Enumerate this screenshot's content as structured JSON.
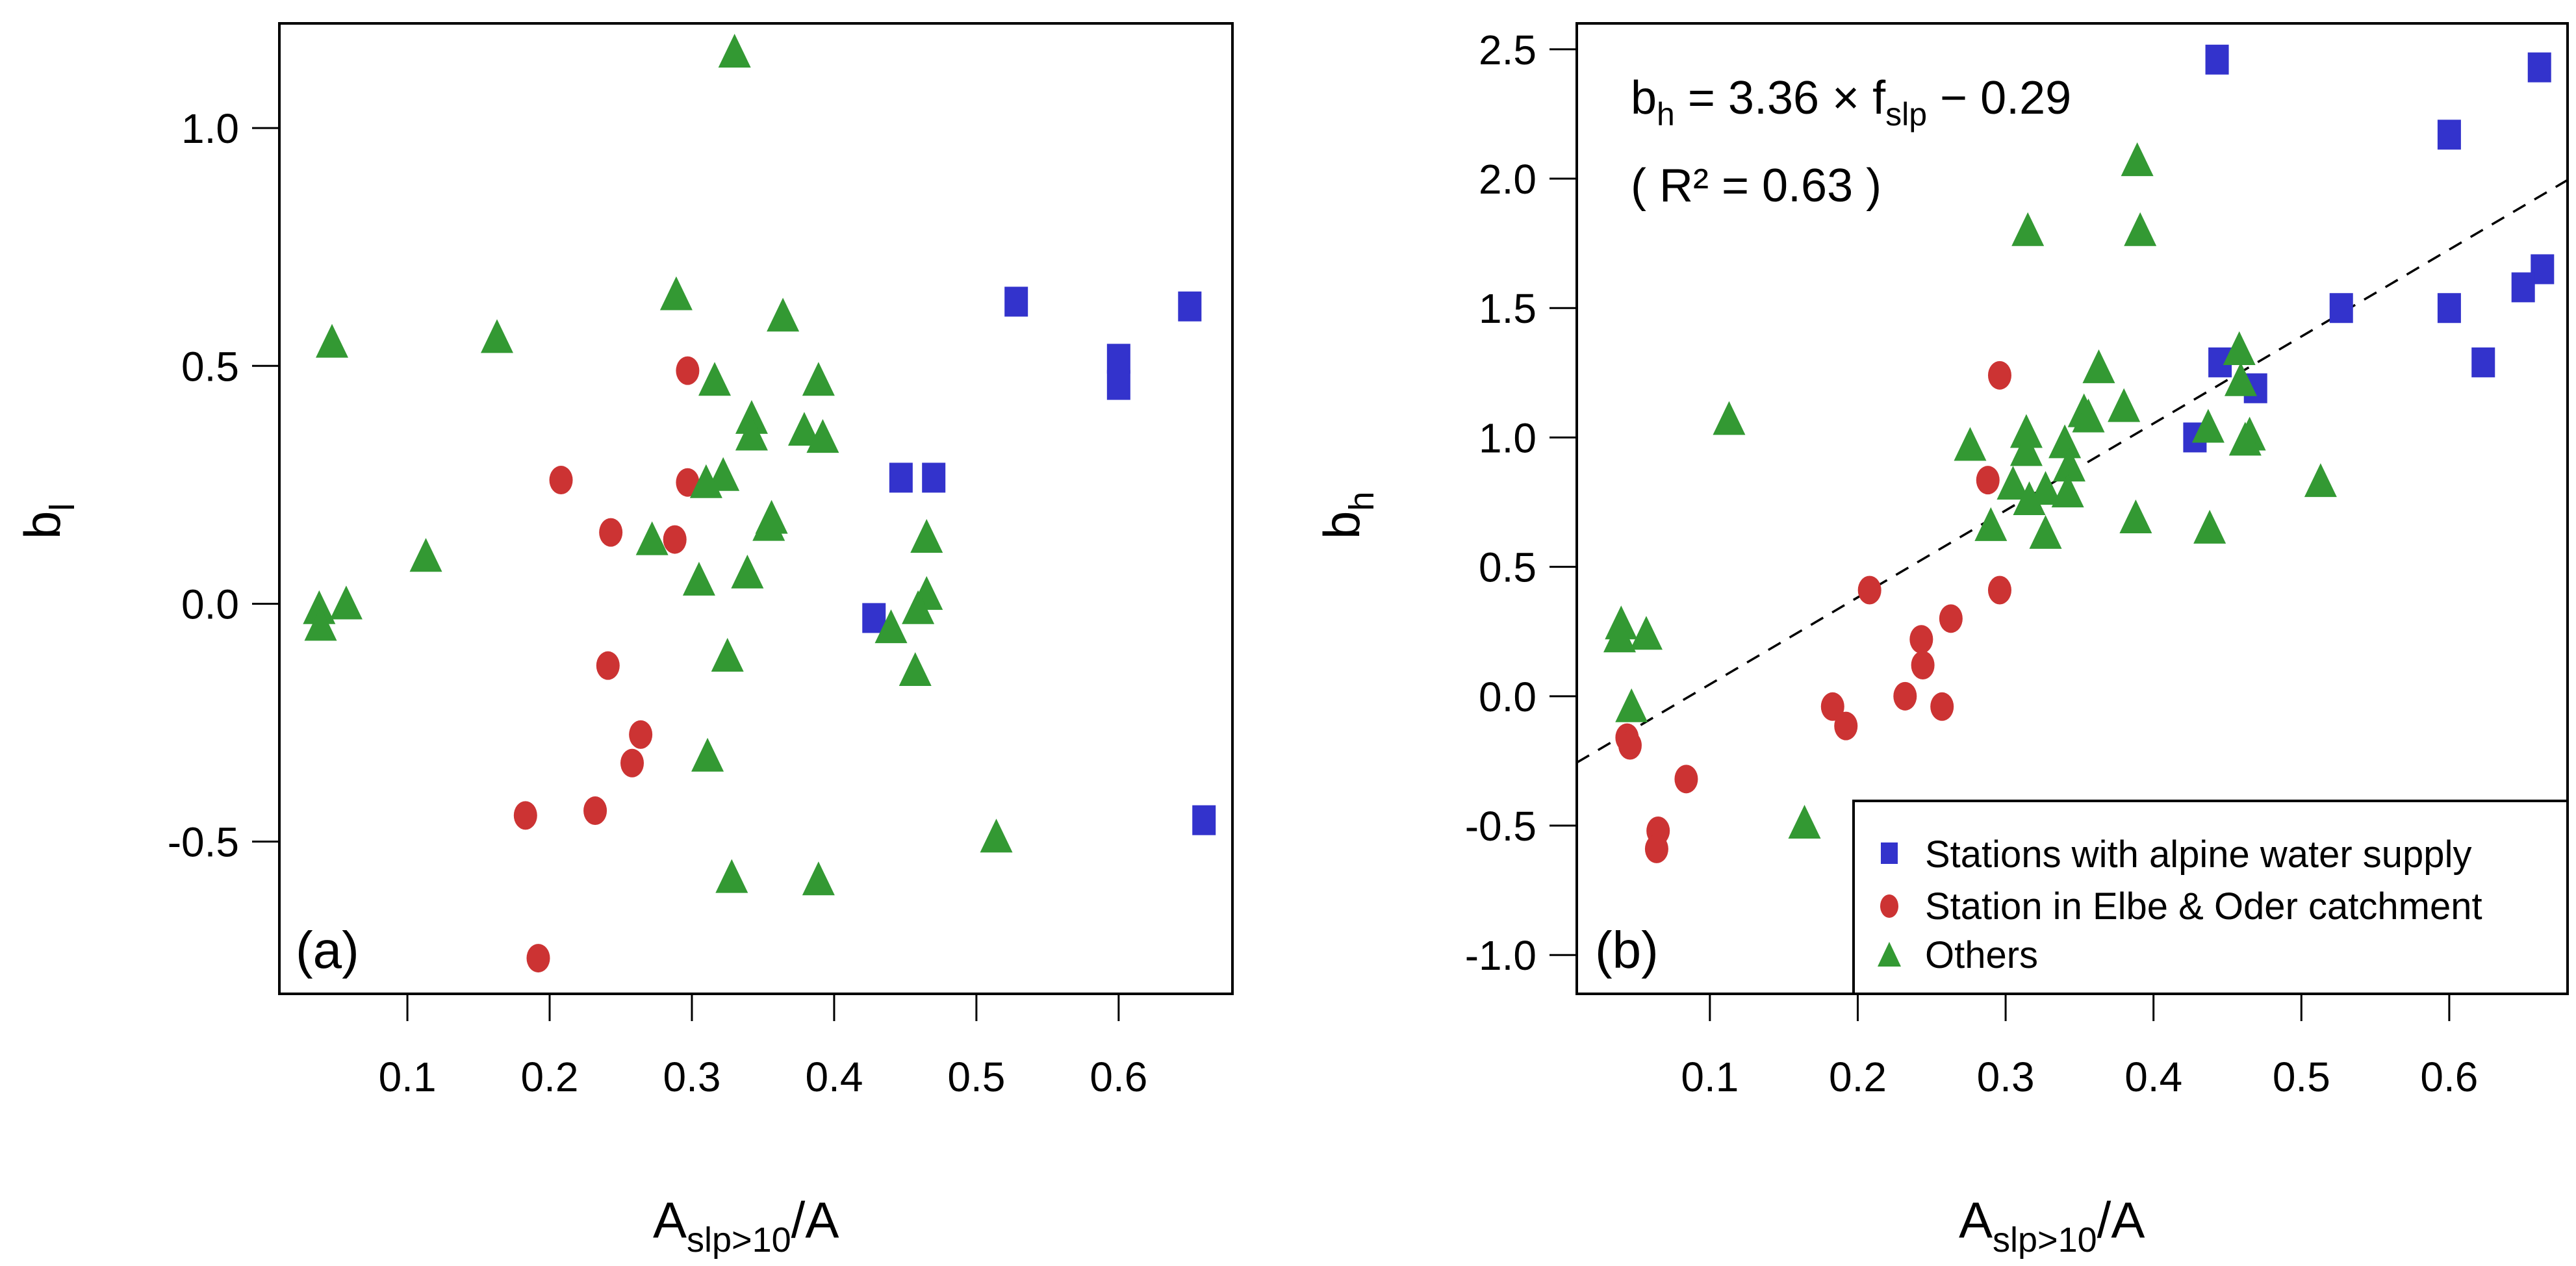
{
  "colors": {
    "alpine": "#3333CC",
    "elbe_oder": "#CC3333",
    "others": "#339933",
    "axis": "#000000"
  },
  "chart_data": [
    {
      "type": "scatter",
      "panel_label": "(a)",
      "xlabel_main": "A",
      "xlabel_sub": "slp>10",
      "xlabel_tail": "/A",
      "ylabel_main": "b",
      "ylabel_sub": "l",
      "xlim": [
        0.01,
        0.68
      ],
      "ylim": [
        -0.82,
        1.22
      ],
      "xticks": [
        0.1,
        0.2,
        0.3,
        0.4,
        0.5,
        0.6
      ],
      "xtick_labels": [
        "0.1",
        "0.2",
        "0.3",
        "0.4",
        "0.5",
        "0.6"
      ],
      "yticks": [
        -0.5,
        0.0,
        0.5,
        1.0
      ],
      "ytick_labels": [
        "-0.5",
        "0.0",
        "0.5",
        "1.0"
      ],
      "grid": false,
      "series": [
        {
          "name": "Stations with alpine water supply",
          "marker": "square",
          "color_key": "alpine",
          "points": [
            [
              0.528,
              0.635
            ],
            [
              0.65,
              0.625
            ],
            [
              0.6,
              0.515
            ],
            [
              0.6,
              0.46
            ],
            [
              0.447,
              0.265
            ],
            [
              0.47,
              0.265
            ],
            [
              0.428,
              -0.03
            ],
            [
              0.66,
              -0.455
            ]
          ]
        },
        {
          "name": "Station in Elbe & Oder catchment",
          "marker": "circle",
          "color_key": "elbe_oder",
          "points": [
            [
              0.297,
              0.49
            ],
            [
              0.208,
              0.26
            ],
            [
              0.297,
              0.255
            ],
            [
              0.243,
              0.15
            ],
            [
              0.288,
              0.135
            ],
            [
              0.241,
              -0.13
            ],
            [
              0.264,
              -0.275
            ],
            [
              0.258,
              -0.335
            ],
            [
              0.232,
              -0.435
            ],
            [
              0.183,
              -0.445
            ],
            [
              0.192,
              -0.745
            ]
          ]
        },
        {
          "name": "Others",
          "marker": "triangle",
          "color_key": "others",
          "points": [
            [
              0.33,
              1.16
            ],
            [
              0.289,
              0.65
            ],
            [
              0.364,
              0.605
            ],
            [
              0.163,
              0.56
            ],
            [
              0.047,
              0.55
            ],
            [
              0.316,
              0.47
            ],
            [
              0.389,
              0.47
            ],
            [
              0.342,
              0.39
            ],
            [
              0.342,
              0.355
            ],
            [
              0.379,
              0.365
            ],
            [
              0.392,
              0.35
            ],
            [
              0.322,
              0.27
            ],
            [
              0.31,
              0.255
            ],
            [
              0.356,
              0.18
            ],
            [
              0.354,
              0.165
            ],
            [
              0.272,
              0.135
            ],
            [
              0.465,
              0.14
            ],
            [
              0.113,
              0.1
            ],
            [
              0.339,
              0.065
            ],
            [
              0.305,
              0.05
            ],
            [
              0.465,
              0.02
            ],
            [
              0.057,
              0.0
            ],
            [
              0.038,
              -0.01
            ],
            [
              0.459,
              -0.01
            ],
            [
              0.039,
              -0.045
            ],
            [
              0.44,
              -0.05
            ],
            [
              0.325,
              -0.11
            ],
            [
              0.457,
              -0.14
            ],
            [
              0.311,
              -0.32
            ],
            [
              0.514,
              -0.49
            ],
            [
              0.328,
              -0.575
            ],
            [
              0.389,
              -0.58
            ]
          ]
        }
      ]
    },
    {
      "type": "scatter",
      "panel_label": "(b)",
      "xlabel_main": "A",
      "xlabel_sub": "slp>10",
      "xlabel_tail": "/A",
      "ylabel_main": "b",
      "ylabel_sub": "h",
      "xlim": [
        0.01,
        0.68
      ],
      "ylim": [
        -1.15,
        2.6
      ],
      "xticks": [
        0.1,
        0.2,
        0.3,
        0.4,
        0.5,
        0.6
      ],
      "xtick_labels": [
        "0.1",
        "0.2",
        "0.3",
        "0.4",
        "0.5",
        "0.6"
      ],
      "yticks": [
        -1.0,
        -0.5,
        0.0,
        0.5,
        1.0,
        1.5,
        2.0,
        2.5
      ],
      "ytick_labels": [
        "-1.0",
        "-0.5",
        "0.0",
        "0.5",
        "1.0",
        "1.5",
        "2.0",
        "2.5"
      ],
      "grid": false,
      "annotation_equation": {
        "lhs": "b",
        "lhs_sub": "h",
        "mid": " = 3.36 × f",
        "mid_sub": "slp",
        "rhs": " − 0.29"
      },
      "annotation_r2": "( R² = 0.63 )",
      "regression": {
        "slope": 3.36,
        "intercept": -0.29,
        "style": "dashed"
      },
      "legend": {
        "position": "bottom-right",
        "entries": [
          "Stations with alpine water supply",
          "Station in Elbe & Oder catchment",
          "Others"
        ]
      },
      "series": [
        {
          "name": "Stations with alpine water supply",
          "marker": "square",
          "color_key": "alpine",
          "points": [
            [
              0.443,
              2.46
            ],
            [
              0.661,
              2.43
            ],
            [
              0.6,
              2.17
            ],
            [
              0.663,
              1.65
            ],
            [
              0.65,
              1.58
            ],
            [
              0.6,
              1.5
            ],
            [
              0.527,
              1.5
            ],
            [
              0.445,
              1.29
            ],
            [
              0.623,
              1.29
            ],
            [
              0.469,
              1.19
            ],
            [
              0.428,
              1.0
            ]
          ]
        },
        {
          "name": "Station in Elbe & Oder catchment",
          "marker": "circle",
          "color_key": "elbe_oder",
          "points": [
            [
              0.296,
              1.24
            ],
            [
              0.288,
              0.835
            ],
            [
              0.208,
              0.41
            ],
            [
              0.296,
              0.41
            ],
            [
              0.263,
              0.3
            ],
            [
              0.243,
              0.22
            ],
            [
              0.244,
              0.12
            ],
            [
              0.232,
              0.0
            ],
            [
              0.183,
              -0.04
            ],
            [
              0.257,
              -0.04
            ],
            [
              0.192,
              -0.115
            ],
            [
              0.044,
              -0.16
            ],
            [
              0.046,
              -0.19
            ],
            [
              0.084,
              -0.32
            ],
            [
              0.065,
              -0.52
            ],
            [
              0.064,
              -0.59
            ]
          ]
        },
        {
          "name": "Others",
          "marker": "triangle",
          "color_key": "others",
          "points": [
            [
              0.389,
              2.07
            ],
            [
              0.315,
              1.8
            ],
            [
              0.391,
              1.8
            ],
            [
              0.458,
              1.34
            ],
            [
              0.363,
              1.27
            ],
            [
              0.459,
              1.22
            ],
            [
              0.353,
              1.1
            ],
            [
              0.38,
              1.12
            ],
            [
              0.356,
              1.08
            ],
            [
              0.113,
              1.07
            ],
            [
              0.437,
              1.04
            ],
            [
              0.314,
              1.02
            ],
            [
              0.465,
              1.01
            ],
            [
              0.34,
              0.98
            ],
            [
              0.276,
              0.97
            ],
            [
              0.462,
              0.99
            ],
            [
              0.314,
              0.95
            ],
            [
              0.343,
              0.89
            ],
            [
              0.305,
              0.82
            ],
            [
              0.327,
              0.8
            ],
            [
              0.342,
              0.79
            ],
            [
              0.316,
              0.76
            ],
            [
              0.513,
              0.83
            ],
            [
              0.388,
              0.69
            ],
            [
              0.29,
              0.66
            ],
            [
              0.438,
              0.65
            ],
            [
              0.327,
              0.63
            ],
            [
              0.04,
              0.28
            ],
            [
              0.039,
              0.23
            ],
            [
              0.057,
              0.24
            ],
            [
              0.047,
              -0.04
            ],
            [
              0.164,
              -0.49
            ]
          ]
        }
      ]
    }
  ]
}
